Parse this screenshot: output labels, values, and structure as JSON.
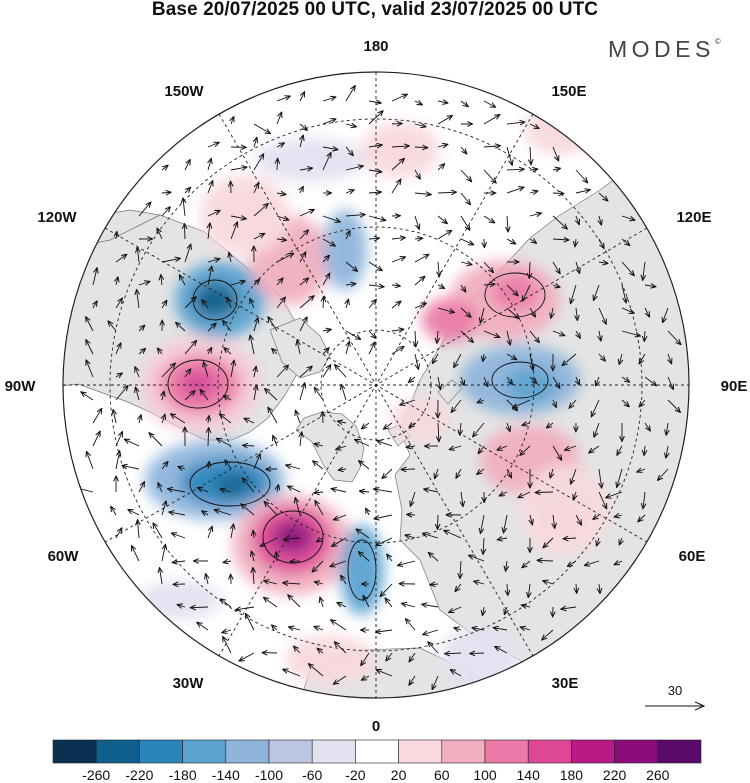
{
  "header": {
    "title": "Base 20/07/2025 00 UTC, valid 23/07/2025 00 UTC",
    "brand": "MODES",
    "brand_mark": "©"
  },
  "longitude_labels": {
    "top": "180",
    "top_left": "150W",
    "top_right": "150E",
    "upper_left": "120W",
    "upper_right": "120E",
    "left": "90W",
    "right": "90E",
    "lower_left": "60W",
    "lower_right": "60E",
    "bottom_left": "30W",
    "bottom_right": "30E",
    "bottom": "0"
  },
  "reference_vector": {
    "label": "30"
  },
  "colorbar": {
    "ticks": [
      "-260",
      "-220",
      "-180",
      "-140",
      "-100",
      "-60",
      "-20",
      "20",
      "60",
      "100",
      "140",
      "180",
      "220",
      "260"
    ],
    "colors": [
      "#0b3150",
      "#0f5f8c",
      "#2a85bd",
      "#5ba3d0",
      "#8fb5dc",
      "#bcc6e3",
      "#e2e2f1",
      "#ffffff",
      "#f8d9dd",
      "#f1afbf",
      "#ec7aa8",
      "#de4696",
      "#b81b85",
      "#8c0b7a",
      "#5a0a6a"
    ]
  },
  "anomaly_centers": [
    {
      "lat": 58,
      "lon": -87,
      "value": 200
    },
    {
      "lat": 58,
      "lon": -52,
      "value": -210
    },
    {
      "lat": 55,
      "lon": -28,
      "value": 260
    },
    {
      "lat": 62,
      "lon": -10,
      "value": -120
    },
    {
      "lat": 70,
      "lon": -120,
      "value": -140
    },
    {
      "lat": 62,
      "lon": -140,
      "value": 60
    },
    {
      "lat": 70,
      "lon": -165,
      "value": 80
    },
    {
      "lat": 63,
      "lon": 145,
      "value": 60
    },
    {
      "lat": 72,
      "lon": 170,
      "value": -90
    },
    {
      "lat": 62,
      "lon": 120,
      "value": 120
    },
    {
      "lat": 68,
      "lon": 105,
      "value": 60
    },
    {
      "lat": 60,
      "lon": 88,
      "value": -100
    },
    {
      "lat": 60,
      "lon": 68,
      "value": 80
    },
    {
      "lat": 48,
      "lon": 45,
      "value": 60
    },
    {
      "lat": 40,
      "lon": 25,
      "value": -40
    },
    {
      "lat": 45,
      "lon": -110,
      "value": 50
    }
  ]
}
